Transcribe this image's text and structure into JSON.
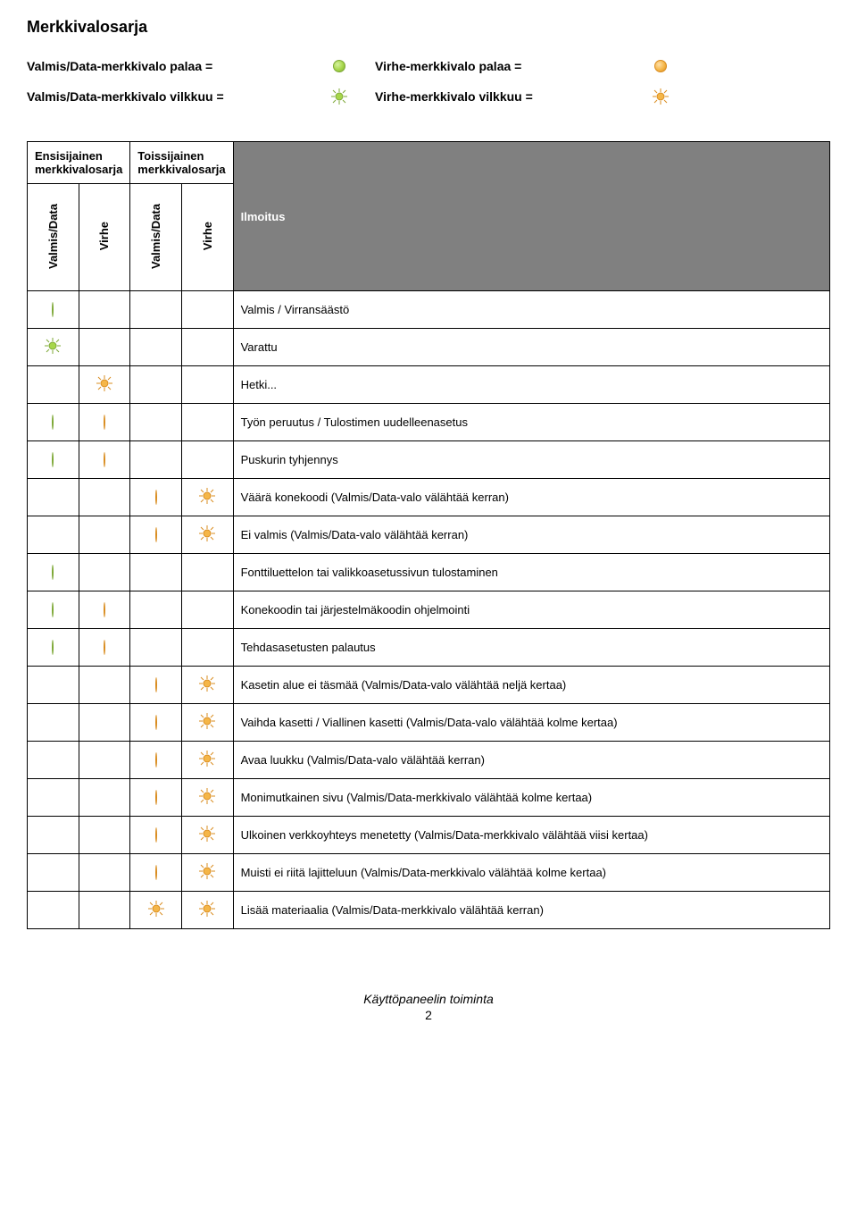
{
  "title": "Merkkivalosarja",
  "legend": {
    "row1_left": "Valmis/Data-merkkivalo palaa =",
    "row1_right": "Virhe-merkkivalo palaa =",
    "row2_left": "Valmis/Data-merkkivalo vilkkuu =",
    "row2_right": "Virhe-merkkivalo vilkkuu ="
  },
  "table": {
    "group_primary": "Ensisijainen merkkivalosarja",
    "group_secondary": "Toissijainen merkkivalosarja",
    "col_valmis": "Valmis/Data",
    "col_virhe": "Virhe",
    "col_ilmoitus": "Ilmoitus"
  },
  "icons": {
    "green_on": "g",
    "orange_on": "o",
    "green_blink": "gb",
    "orange_blink": "ob"
  },
  "colors": {
    "green_light": "#d6f2a0",
    "green_mid": "#a6d64a",
    "green_dark": "#7da836",
    "orange_light": "#ffe0a8",
    "orange_mid": "#f5b648",
    "orange_dark": "#d98c1f",
    "header_bg": "#808080",
    "header_fg": "#ffffff",
    "border": "#000000",
    "bg": "#ffffff"
  },
  "messages": [
    {
      "c": [
        "g",
        "",
        "",
        ""
      ],
      "text": "Valmis / Virransäästö"
    },
    {
      "c": [
        "gb",
        "",
        "",
        ""
      ],
      "text": "Varattu"
    },
    {
      "c": [
        "",
        "ob",
        "",
        ""
      ],
      "text": "Hetki..."
    },
    {
      "c": [
        "g",
        "o",
        "",
        ""
      ],
      "text": "Työn peruutus / Tulostimen uudelleenasetus"
    },
    {
      "c": [
        "g",
        "o",
        "",
        ""
      ],
      "text": "Puskurin tyhjennys"
    },
    {
      "c": [
        "",
        "",
        "o",
        "ob"
      ],
      "text": "Väärä konekoodi (Valmis/Data-valo välähtää kerran)"
    },
    {
      "c": [
        "",
        "",
        "o",
        "ob"
      ],
      "text": "Ei valmis (Valmis/Data-valo välähtää kerran)"
    },
    {
      "c": [
        "g",
        "",
        "",
        ""
      ],
      "text": "Fonttiluettelon tai valikkoasetussivun tulostaminen"
    },
    {
      "c": [
        "g",
        "o",
        "",
        ""
      ],
      "text": "Konekoodin tai järjestelmäkoodin ohjelmointi"
    },
    {
      "c": [
        "g",
        "o",
        "",
        ""
      ],
      "text": "Tehdasasetusten palautus"
    },
    {
      "c": [
        "",
        "",
        "o",
        "ob"
      ],
      "text": "Kasetin alue ei täsmää (Valmis/Data-valo välähtää neljä kertaa)"
    },
    {
      "c": [
        "",
        "",
        "o",
        "ob"
      ],
      "text": "Vaihda kasetti / Viallinen kasetti (Valmis/Data-valo välähtää kolme kertaa)"
    },
    {
      "c": [
        "",
        "",
        "o",
        "ob"
      ],
      "text": "Avaa luukku (Valmis/Data-valo välähtää kerran)"
    },
    {
      "c": [
        "",
        "",
        "o",
        "ob"
      ],
      "text": "Monimutkainen sivu (Valmis/Data-merkkivalo välähtää kolme kertaa)"
    },
    {
      "c": [
        "",
        "",
        "o",
        "ob"
      ],
      "text": "Ulkoinen verkkoyhteys menetetty (Valmis/Data-merkkivalo välähtää viisi kertaa)"
    },
    {
      "c": [
        "",
        "",
        "o",
        "ob"
      ],
      "text": "Muisti ei riitä lajitteluun (Valmis/Data-merkkivalo välähtää kolme kertaa)"
    },
    {
      "c": [
        "",
        "",
        "ob",
        "ob"
      ],
      "text": "Lisää materiaalia (Valmis/Data-merkkivalo välähtää kerran)"
    }
  ],
  "footer": {
    "text": "Käyttöpaneelin toiminta",
    "page": "2"
  }
}
